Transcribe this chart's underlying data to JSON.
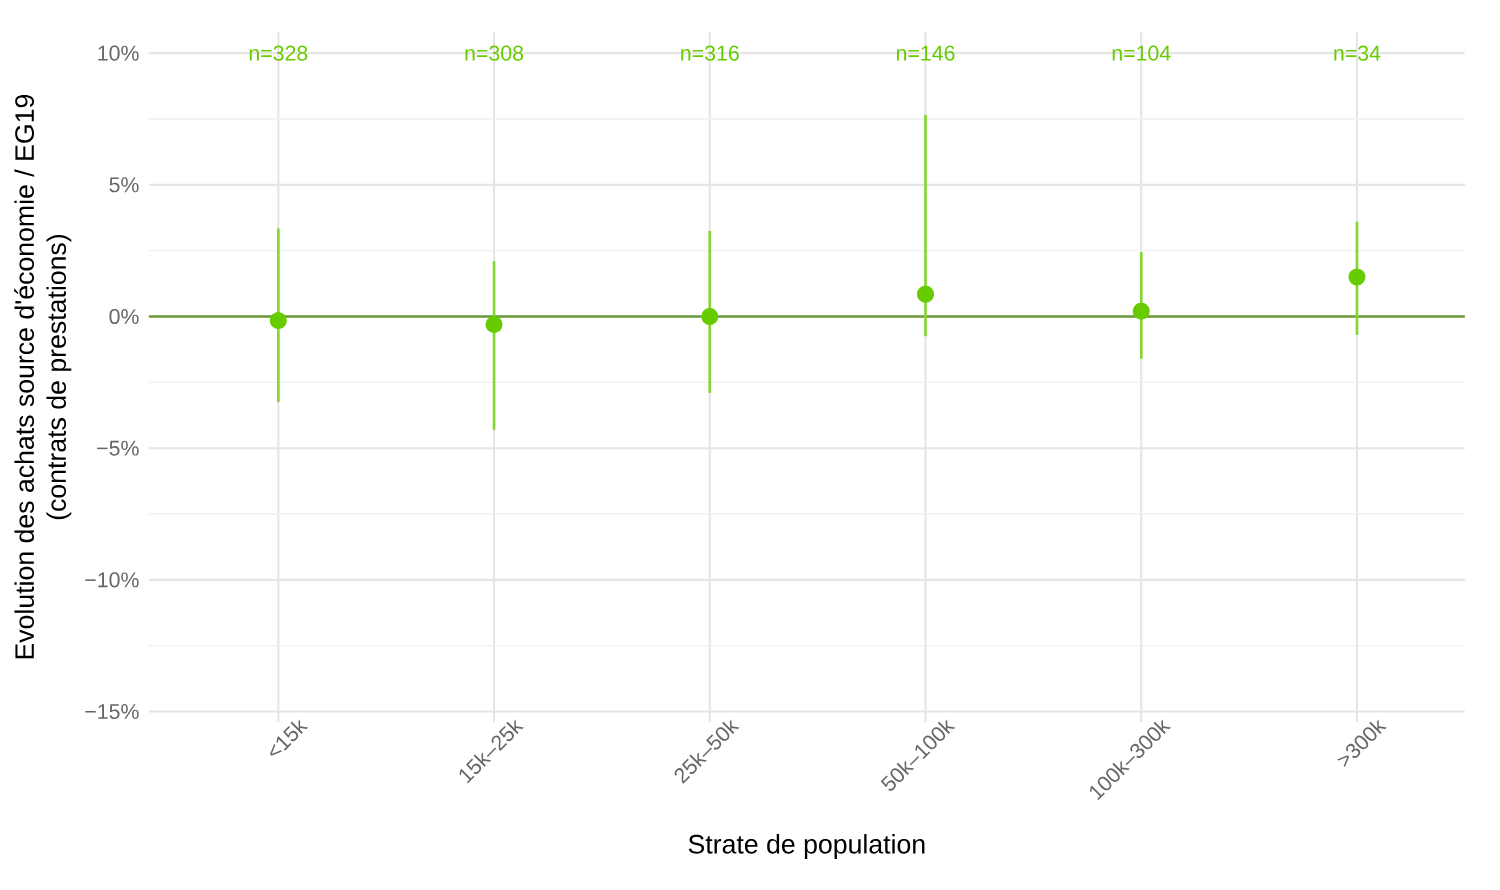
{
  "chart_data": {
    "type": "scatter",
    "xlabel": "Strate de population",
    "ylabel": "Evolution des achats source d'économie / EG19\n(contrats de prestations)",
    "categories": [
      "<15k",
      "15k–25k",
      "25k–50k",
      "50k–100k",
      "100k–300k",
      ">300k"
    ],
    "series": [
      {
        "color": "#66cc00",
        "values": [
          -0.15,
          -0.3,
          0,
          0.85,
          0.2,
          1.5
        ],
        "errors": [
          [
            -3.25,
            3.35
          ],
          [
            -4.3,
            2.1
          ],
          [
            -2.9,
            3.25
          ],
          [
            -0.75,
            7.65
          ],
          [
            -1.6,
            2.45
          ],
          [
            -0.7,
            3.6
          ]
        ]
      }
    ],
    "ylim": [
      -15.4,
      10.8
    ],
    "yticks": [
      {
        "value": -15,
        "label": "−15%"
      },
      {
        "value": -10,
        "label": "−10%"
      },
      {
        "value": -5,
        "label": "−5%"
      },
      {
        "value": 0,
        "label": "0%"
      },
      {
        "value": 5,
        "label": "5%"
      },
      {
        "value": 10,
        "label": "10%"
      }
    ],
    "grid": true,
    "ref_lines": [
      {
        "axis": "y",
        "value": 0,
        "color": "#6a9a3a"
      }
    ],
    "annotations": [
      "n=328",
      "n=308",
      "n=316",
      "n=146",
      "n=104",
      "n=34"
    ]
  }
}
